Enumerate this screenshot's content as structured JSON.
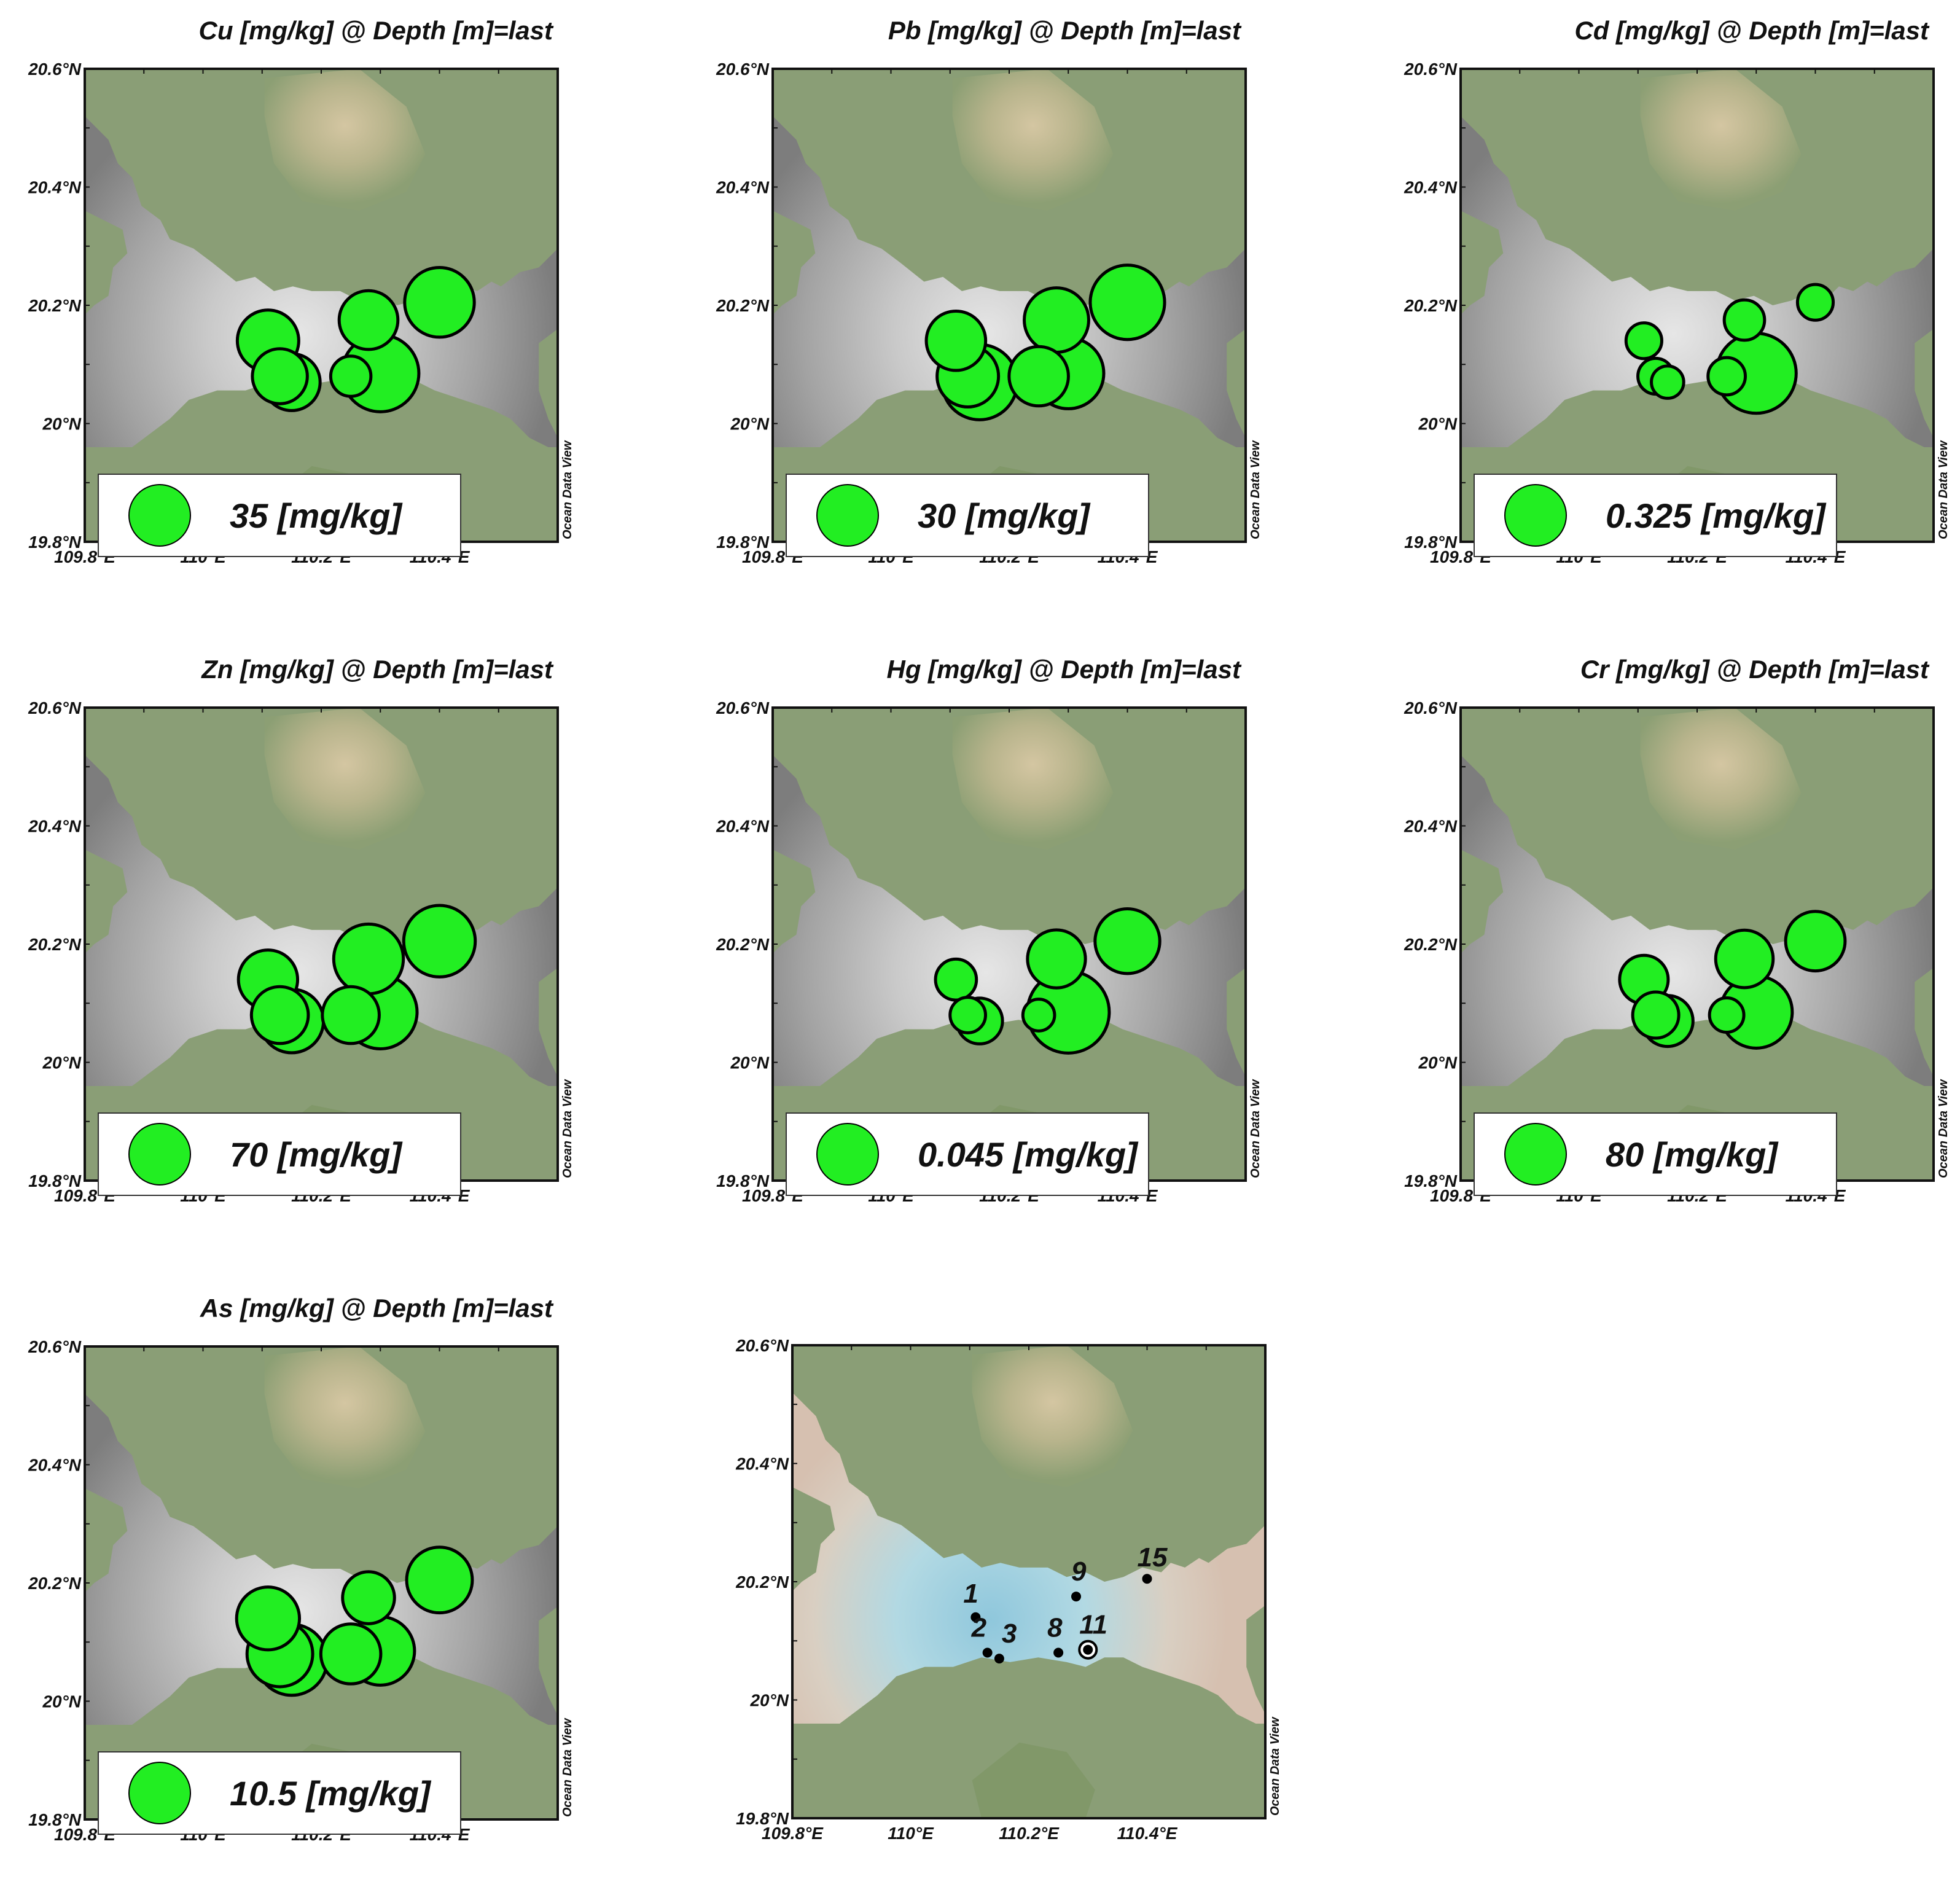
{
  "map_extent": {
    "lon": [
      109.8,
      110.6
    ],
    "lat": [
      19.8,
      20.6
    ]
  },
  "axis_labels": {
    "x_ticks": [
      {
        "lon": 109.8,
        "label": "109.8°E"
      },
      {
        "lon": 110.0,
        "label": "110°E"
      },
      {
        "lon": 110.2,
        "label": "110.2°E"
      },
      {
        "lon": 110.4,
        "label": "110.4°E"
      }
    ],
    "y_ticks": [
      {
        "lat": 20.6,
        "label": "20.6°N"
      },
      {
        "lat": 20.4,
        "label": "20.4°N"
      },
      {
        "lat": 20.2,
        "label": "20.2°N"
      },
      {
        "lat": 20.0,
        "label": "20°N"
      },
      {
        "lat": 19.8,
        "label": "19.8°N"
      }
    ]
  },
  "watermark": "Ocean Data View",
  "colors": {
    "bubble": "#22ee22",
    "land": "#8a9e76",
    "water_light": "#d9d9d9",
    "water_dark": "#8c8c8c",
    "station_water": "#a7d3e2",
    "station_land_edge": "#d7c3b3"
  },
  "stations": [
    {
      "id": "1",
      "lon": 110.11,
      "lat": 20.14
    },
    {
      "id": "2",
      "lon": 110.13,
      "lat": 20.08
    },
    {
      "id": "3",
      "lon": 110.15,
      "lat": 20.07
    },
    {
      "id": "8",
      "lon": 110.25,
      "lat": 20.08
    },
    {
      "id": "9",
      "lon": 110.28,
      "lat": 20.175
    },
    {
      "id": "11",
      "lon": 110.3,
      "lat": 20.085
    },
    {
      "id": "15",
      "lon": 110.4,
      "lat": 20.205
    }
  ],
  "panels": [
    {
      "title": "Cu [mg/kg] @ Depth [m]=last",
      "legend_label": "35 [mg/kg]",
      "legend_value": 35,
      "stations": [
        {
          "id": "1",
          "value": 35
        },
        {
          "id": "2",
          "value": 28
        },
        {
          "id": "3",
          "value": 30
        },
        {
          "id": "8",
          "value": 15
        },
        {
          "id": "9",
          "value": 32
        },
        {
          "id": "11",
          "value": 55
        },
        {
          "id": "15",
          "value": 45
        }
      ]
    },
    {
      "title": "Pb [mg/kg] @ Depth [m]=last",
      "legend_label": "30 [mg/kg]",
      "legend_value": 30,
      "stations": [
        {
          "id": "1",
          "value": 28
        },
        {
          "id": "2",
          "value": 30
        },
        {
          "id": "3",
          "value": 45
        },
        {
          "id": "8",
          "value": 28
        },
        {
          "id": "9",
          "value": 33
        },
        {
          "id": "11",
          "value": 40
        },
        {
          "id": "15",
          "value": 44
        }
      ]
    },
    {
      "title": "Cd [mg/kg] @ Depth [m]=last",
      "legend_label": "0.325 [mg/kg]",
      "legend_value": 0.325,
      "stations": [
        {
          "id": "1",
          "value": 0.11
        },
        {
          "id": "2",
          "value": 0.11
        },
        {
          "id": "3",
          "value": 0.09
        },
        {
          "id": "8",
          "value": 0.12
        },
        {
          "id": "9",
          "value": 0.14
        },
        {
          "id": "11",
          "value": 0.55
        },
        {
          "id": "15",
          "value": 0.11
        }
      ]
    },
    {
      "title": "Zn [mg/kg] @ Depth [m]=last",
      "legend_label": "70 [mg/kg]",
      "legend_value": 70,
      "stations": [
        {
          "id": "1",
          "value": 65
        },
        {
          "id": "2",
          "value": 60
        },
        {
          "id": "3",
          "value": 75
        },
        {
          "id": "8",
          "value": 60
        },
        {
          "id": "9",
          "value": 90
        },
        {
          "id": "11",
          "value": 100
        },
        {
          "id": "15",
          "value": 95
        }
      ]
    },
    {
      "title": "Hg [mg/kg] @ Depth [m]=last",
      "legend_label": "0.045 [mg/kg]",
      "legend_value": 0.045,
      "stations": [
        {
          "id": "1",
          "value": 0.02
        },
        {
          "id": "2",
          "value": 0.015
        },
        {
          "id": "3",
          "value": 0.025
        },
        {
          "id": "8",
          "value": 0.012
        },
        {
          "id": "9",
          "value": 0.04
        },
        {
          "id": "11",
          "value": 0.08
        },
        {
          "id": "15",
          "value": 0.05
        }
      ]
    },
    {
      "title": "Cr [mg/kg] @ Depth [m]=last",
      "legend_label": "80 [mg/kg]",
      "legend_value": 80,
      "stations": [
        {
          "id": "1",
          "value": 50
        },
        {
          "id": "2",
          "value": 45
        },
        {
          "id": "3",
          "value": 55
        },
        {
          "id": "8",
          "value": 25
        },
        {
          "id": "9",
          "value": 70
        },
        {
          "id": "11",
          "value": 110
        },
        {
          "id": "15",
          "value": 75
        }
      ]
    },
    {
      "title": "As [mg/kg] @ Depth [m]=last",
      "legend_label": "10.5 [mg/kg]",
      "legend_value": 10.5,
      "stations": [
        {
          "id": "1",
          "value": 11
        },
        {
          "id": "2",
          "value": 12
        },
        {
          "id": "3",
          "value": 14
        },
        {
          "id": "8",
          "value": 10
        },
        {
          "id": "9",
          "value": 7.5
        },
        {
          "id": "11",
          "value": 13
        },
        {
          "id": "15",
          "value": 12
        }
      ]
    }
  ]
}
